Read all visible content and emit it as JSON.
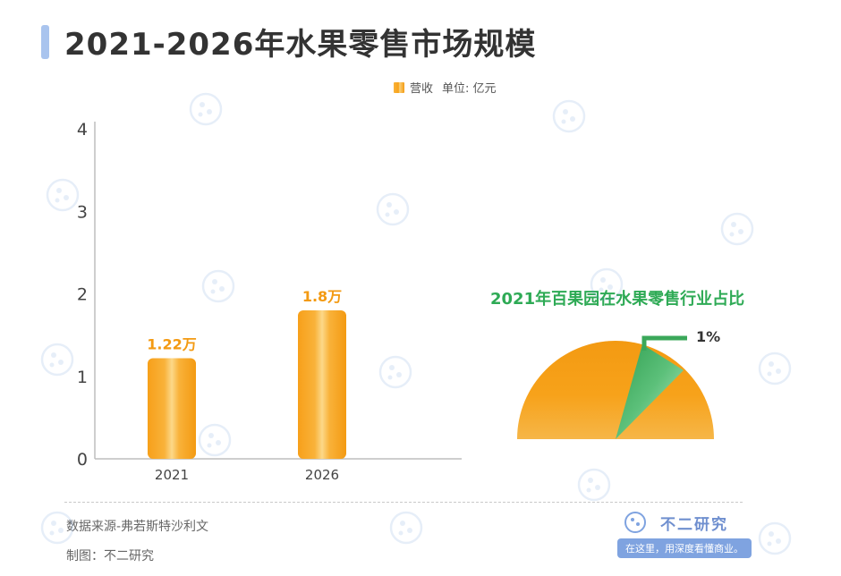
{
  "title": "2021-2026年水果零售市场规模",
  "legend": {
    "series_label": "营收",
    "unit_label": "单位: 亿元"
  },
  "colors": {
    "bar": "#f7a21a",
    "bar_label": "#f39a12",
    "pie_main": "#f5a31d",
    "pie_slice": "#3ba85a",
    "pie_title": "#2eaa55",
    "title_accent": "#a9c4ee"
  },
  "chart_data": [
    {
      "type": "bar",
      "categories": [
        "2021",
        "2026"
      ],
      "series": [
        {
          "name": "营收",
          "values": [
            1.22,
            1.8
          ],
          "labels": [
            "1.22万",
            "1.8万"
          ]
        }
      ],
      "ylim": [
        0,
        4
      ],
      "yticks": [
        0,
        1,
        2,
        3,
        4
      ],
      "xlabel": "",
      "ylabel": "",
      "grid": false,
      "legend_position": "top-right"
    },
    {
      "type": "pie",
      "title": "2021年百果园在水果零售行业占比",
      "slices": [
        {
          "label": "1%",
          "value": 1,
          "highlight": true
        }
      ]
    }
  ],
  "footer": {
    "source": "数据来源-弗若斯特沙利文",
    "maker": "制图：不二研究"
  },
  "brand": {
    "name": "不二研究",
    "slogan": "在这里，用深度看懂商业。"
  },
  "watermark_text": "不二研究"
}
